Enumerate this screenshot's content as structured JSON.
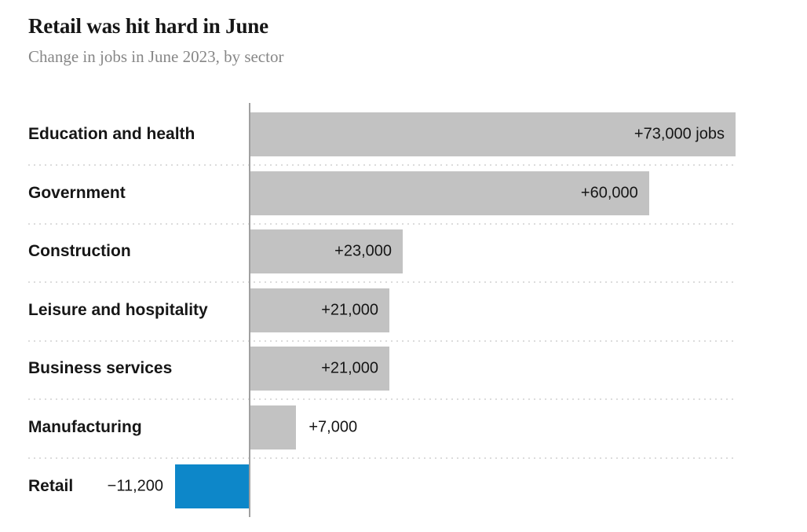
{
  "header": {
    "title": "Retail was hit hard in June",
    "subtitle": "Change in jobs in June 2023, by sector"
  },
  "chart_data": {
    "type": "bar",
    "orientation": "horizontal",
    "title": "Retail was hit hard in June",
    "subtitle": "Change in jobs in June 2023, by sector",
    "xlabel": "",
    "ylabel": "",
    "xlim": [
      -11200,
      73000
    ],
    "grid": "dotted-row-separators",
    "legend": "none",
    "categories": [
      "Education and health",
      "Government",
      "Construction",
      "Leisure and hospitality",
      "Business services",
      "Manufacturing",
      "Retail"
    ],
    "values": [
      73000,
      60000,
      23000,
      21000,
      21000,
      7000,
      -11200
    ],
    "value_labels": [
      "+73,000 jobs",
      "+60,000",
      "+23,000",
      "+21,000",
      "+21,000",
      "+7,000",
      "−11,200"
    ],
    "label_placement": [
      "inside",
      "inside",
      "inside",
      "inside",
      "inside",
      "outside-right",
      "outside-left"
    ],
    "colors": {
      "positive_bar": "#c2c2c2",
      "negative_bar": "#0d87c9",
      "axis_line": "#a0a0a0",
      "grid_dots": "#dcdcdc",
      "title_text": "#161616",
      "subtitle_text": "#878787",
      "label_text": "#161616"
    }
  }
}
